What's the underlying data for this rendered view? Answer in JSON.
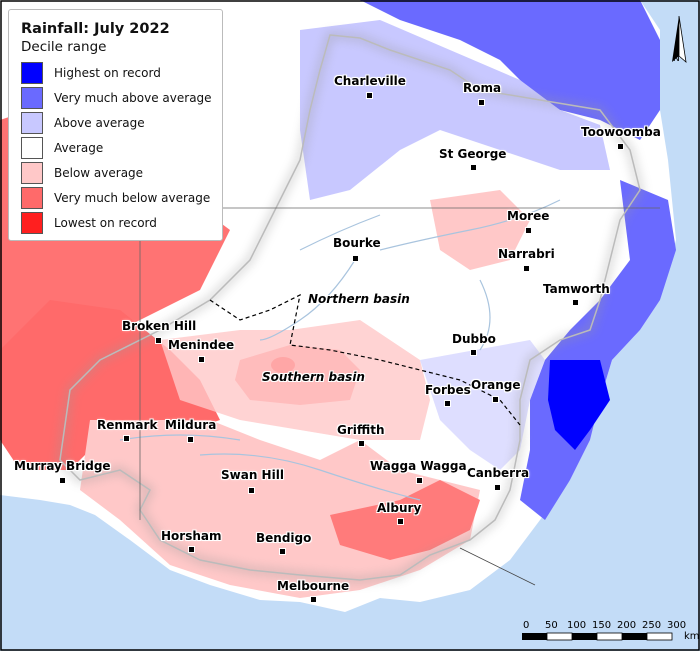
{
  "legend": {
    "title": "Rainfall: July 2022",
    "subtitle": "Decile range",
    "items": [
      {
        "label": "Highest on record",
        "color": "#0000ff"
      },
      {
        "label": "Very much above average",
        "color": "#6a6aff"
      },
      {
        "label": "Above average",
        "color": "#c8c8ff"
      },
      {
        "label": "Average",
        "color": "#ffffff"
      },
      {
        "label": "Below average",
        "color": "#ffc8c8"
      },
      {
        "label": "Very much below average",
        "color": "#ff6a6a"
      },
      {
        "label": "Lowest on record",
        "color": "#ff1f1f"
      }
    ]
  },
  "places": {
    "charleville": "Charleville",
    "roma": "Roma",
    "toowoomba": "Toowoomba",
    "st_george": "St George",
    "moree": "Moree",
    "bourke": "Bourke",
    "narrabri": "Narrabri",
    "tamworth": "Tamworth",
    "broken_hill": "Broken Hill",
    "menindee": "Menindee",
    "dubbo": "Dubbo",
    "forbes": "Forbes",
    "orange": "Orange",
    "renmark": "Renmark",
    "mildura": "Mildura",
    "griffith": "Griffith",
    "murray_bridge": "Murray Bridge",
    "swan_hill": "Swan Hill",
    "wagga_wagga": "Wagga Wagga",
    "canberra": "Canberra",
    "albury": "Albury",
    "horsham": "Horsham",
    "bendigo": "Bendigo",
    "melbourne": "Melbourne"
  },
  "basins": {
    "northern": "Northern basin",
    "southern": "Southern basin"
  },
  "scale_bar": {
    "ticks": [
      "0",
      "50",
      "100",
      "150",
      "200",
      "250",
      "300"
    ],
    "unit": "km"
  },
  "north_arrow": {
    "label": "N"
  },
  "colors": {
    "ocean": "#c3dcf7",
    "land_outside": "#f7f7f7",
    "basin_border": "#888888",
    "rivers": "#a9c4de"
  }
}
